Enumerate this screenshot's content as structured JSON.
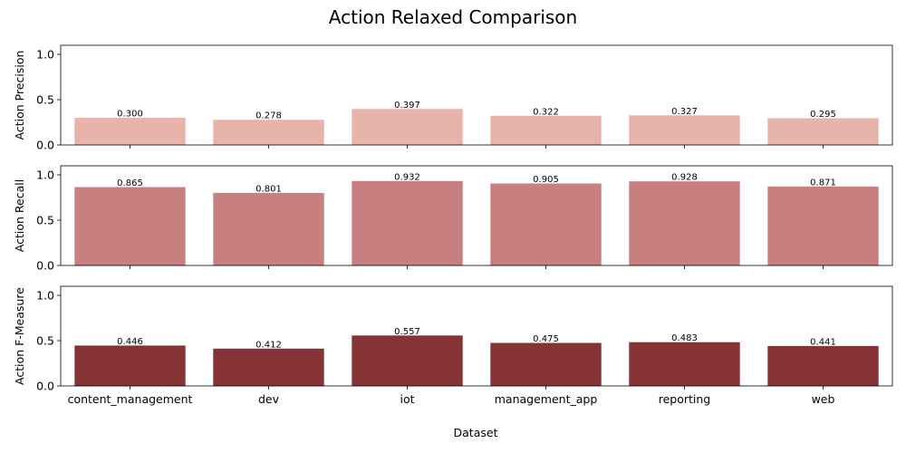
{
  "chart_data": {
    "type": "bar",
    "title": "Action Relaxed Comparison",
    "xlabel": "Dataset",
    "categories": [
      "content_management",
      "dev",
      "iot",
      "management_app",
      "reporting",
      "web"
    ],
    "ylim": [
      0,
      1.1
    ],
    "yticks": [
      "0.0",
      "0.5",
      "1.0"
    ],
    "series": [
      {
        "ylabel": "Action Precision",
        "color": "#e8b3aa",
        "values": [
          0.3,
          0.278,
          0.397,
          0.322,
          0.327,
          0.295
        ],
        "labels": [
          "0.300",
          "0.278",
          "0.397",
          "0.322",
          "0.327",
          "0.295"
        ]
      },
      {
        "ylabel": "Action Recall",
        "color": "#c77f7f",
        "values": [
          0.865,
          0.801,
          0.932,
          0.905,
          0.928,
          0.871
        ],
        "labels": [
          "0.865",
          "0.801",
          "0.932",
          "0.905",
          "0.928",
          "0.871"
        ]
      },
      {
        "ylabel": "Action F-Measure",
        "color": "#863335",
        "values": [
          0.446,
          0.412,
          0.557,
          0.475,
          0.483,
          0.441
        ],
        "labels": [
          "0.446",
          "0.412",
          "0.557",
          "0.475",
          "0.483",
          "0.441"
        ]
      }
    ]
  }
}
